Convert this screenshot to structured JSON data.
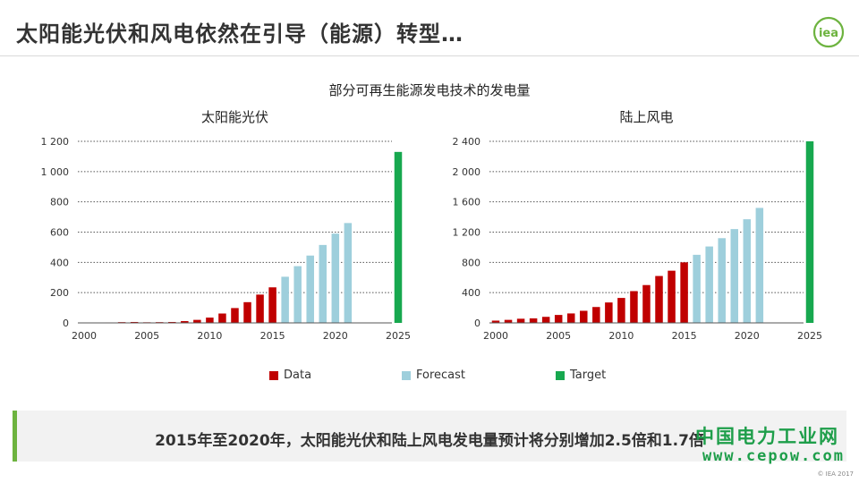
{
  "header": {
    "title": "太阳能光伏和风电依然在引导（能源）转型…",
    "logo_text": "iea"
  },
  "subtitle": "部分可再生能源发电技术的发电量",
  "colors": {
    "data": "#c00000",
    "forecast": "#9ecfdc",
    "target": "#17a84f",
    "accent": "#6db33f",
    "watermark": "#1e9e4a"
  },
  "legend": [
    {
      "label": "Data",
      "color": "#c00000"
    },
    {
      "label": "Forecast",
      "color": "#9ecfdc"
    },
    {
      "label": "Target",
      "color": "#17a84f"
    }
  ],
  "chart_data": [
    {
      "type": "bar",
      "title": "太阳能光伏",
      "x": [
        2000,
        2001,
        2002,
        2003,
        2004,
        2005,
        2006,
        2007,
        2008,
        2009,
        2010,
        2011,
        2012,
        2013,
        2014,
        2015,
        2016,
        2017,
        2018,
        2019,
        2020,
        2021,
        2025
      ],
      "values": [
        1,
        2,
        3,
        5,
        6,
        4,
        5,
        6,
        12,
        20,
        35,
        62,
        98,
        137,
        187,
        235,
        305,
        375,
        445,
        515,
        590,
        660,
        1130
      ],
      "kind": [
        "data",
        "data",
        "data",
        "data",
        "data",
        "data",
        "data",
        "data",
        "data",
        "data",
        "data",
        "data",
        "data",
        "data",
        "data",
        "data",
        "forecast",
        "forecast",
        "forecast",
        "forecast",
        "forecast",
        "forecast",
        "target"
      ],
      "ylim": [
        0,
        1200
      ],
      "yticks": [
        "0",
        "200",
        "400",
        "600",
        "800",
        "1 000",
        "1 200"
      ],
      "xticks": [
        "2000",
        "2005",
        "2010",
        "2015",
        "2020",
        "2025"
      ],
      "grid": true
    },
    {
      "type": "bar",
      "title": "陆上风电",
      "x": [
        2000,
        2001,
        2002,
        2003,
        2004,
        2005,
        2006,
        2007,
        2008,
        2009,
        2010,
        2011,
        2012,
        2013,
        2014,
        2015,
        2016,
        2017,
        2018,
        2019,
        2020,
        2021,
        2025
      ],
      "values": [
        30,
        40,
        55,
        60,
        80,
        105,
        125,
        160,
        210,
        270,
        330,
        420,
        500,
        620,
        690,
        800,
        900,
        1010,
        1120,
        1240,
        1370,
        1520,
        2400
      ],
      "kind": [
        "data",
        "data",
        "data",
        "data",
        "data",
        "data",
        "data",
        "data",
        "data",
        "data",
        "data",
        "data",
        "data",
        "data",
        "data",
        "data",
        "forecast",
        "forecast",
        "forecast",
        "forecast",
        "forecast",
        "forecast",
        "target"
      ],
      "ylim": [
        0,
        2400
      ],
      "yticks": [
        "0",
        "400",
        "800",
        "1 200",
        "1 600",
        "2 000",
        "2 400"
      ],
      "xticks": [
        "2000",
        "2005",
        "2010",
        "2015",
        "2020",
        "2025"
      ],
      "grid": true
    }
  ],
  "footer": {
    "summary": "2015年至2020年，太阳能光伏和陆上风电发电量预计将分别增加2.5倍和1.7倍",
    "watermark_cn": "中国电力工业网",
    "watermark_url": "www.cepow.com",
    "copyright": "© IEA 2017"
  }
}
